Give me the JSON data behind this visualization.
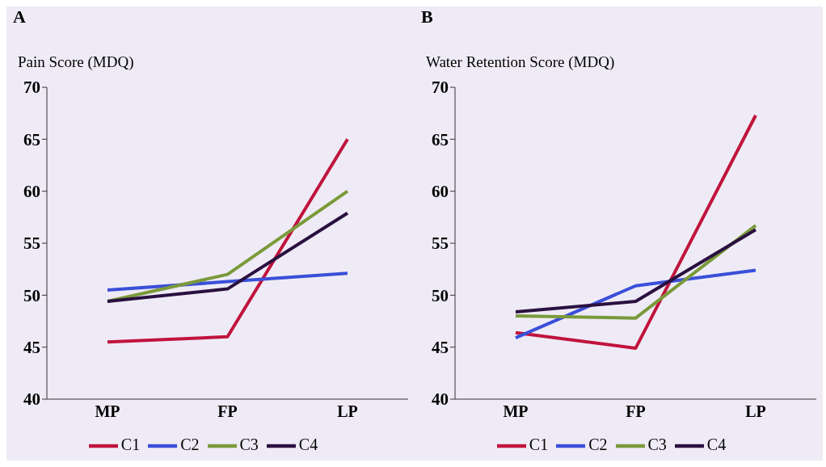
{
  "chart_data": [
    {
      "type": "line",
      "title": "A",
      "ylabel": "Pain Score (MDQ)",
      "categories": [
        "MP",
        "FP",
        "LP"
      ],
      "ylim": [
        40,
        70
      ],
      "yticks": [
        40,
        45,
        50,
        55,
        60,
        65,
        70
      ],
      "grid": false,
      "legend": "bottom",
      "marker": "none",
      "series": [
        {
          "name": "C1",
          "color": "#c0143c",
          "values": [
            45.5,
            46.0,
            65.0
          ]
        },
        {
          "name": "C2",
          "color": "#3a4fd8",
          "values": [
            50.5,
            51.3,
            52.1
          ]
        },
        {
          "name": "C3",
          "color": "#7a9a3a",
          "values": [
            49.4,
            52.0,
            60.0
          ]
        },
        {
          "name": "C4",
          "color": "#2a1040",
          "values": [
            49.4,
            50.6,
            57.9
          ]
        }
      ]
    },
    {
      "type": "line",
      "title": "B",
      "ylabel": "Water Retention Score (MDQ)",
      "categories": [
        "MP",
        "FP",
        "LP"
      ],
      "ylim": [
        40,
        70
      ],
      "yticks": [
        40,
        45,
        50,
        55,
        60,
        65,
        70
      ],
      "grid": false,
      "legend": "bottom",
      "marker": "none",
      "series": [
        {
          "name": "C1",
          "color": "#c0143c",
          "values": [
            46.4,
            44.9,
            67.3
          ]
        },
        {
          "name": "C2",
          "color": "#3a4fd8",
          "values": [
            45.9,
            50.9,
            52.4
          ]
        },
        {
          "name": "C3",
          "color": "#7a9a3a",
          "values": [
            48.0,
            47.8,
            56.7
          ]
        },
        {
          "name": "C4",
          "color": "#2a1040",
          "values": [
            48.4,
            49.4,
            56.3
          ]
        }
      ]
    }
  ]
}
